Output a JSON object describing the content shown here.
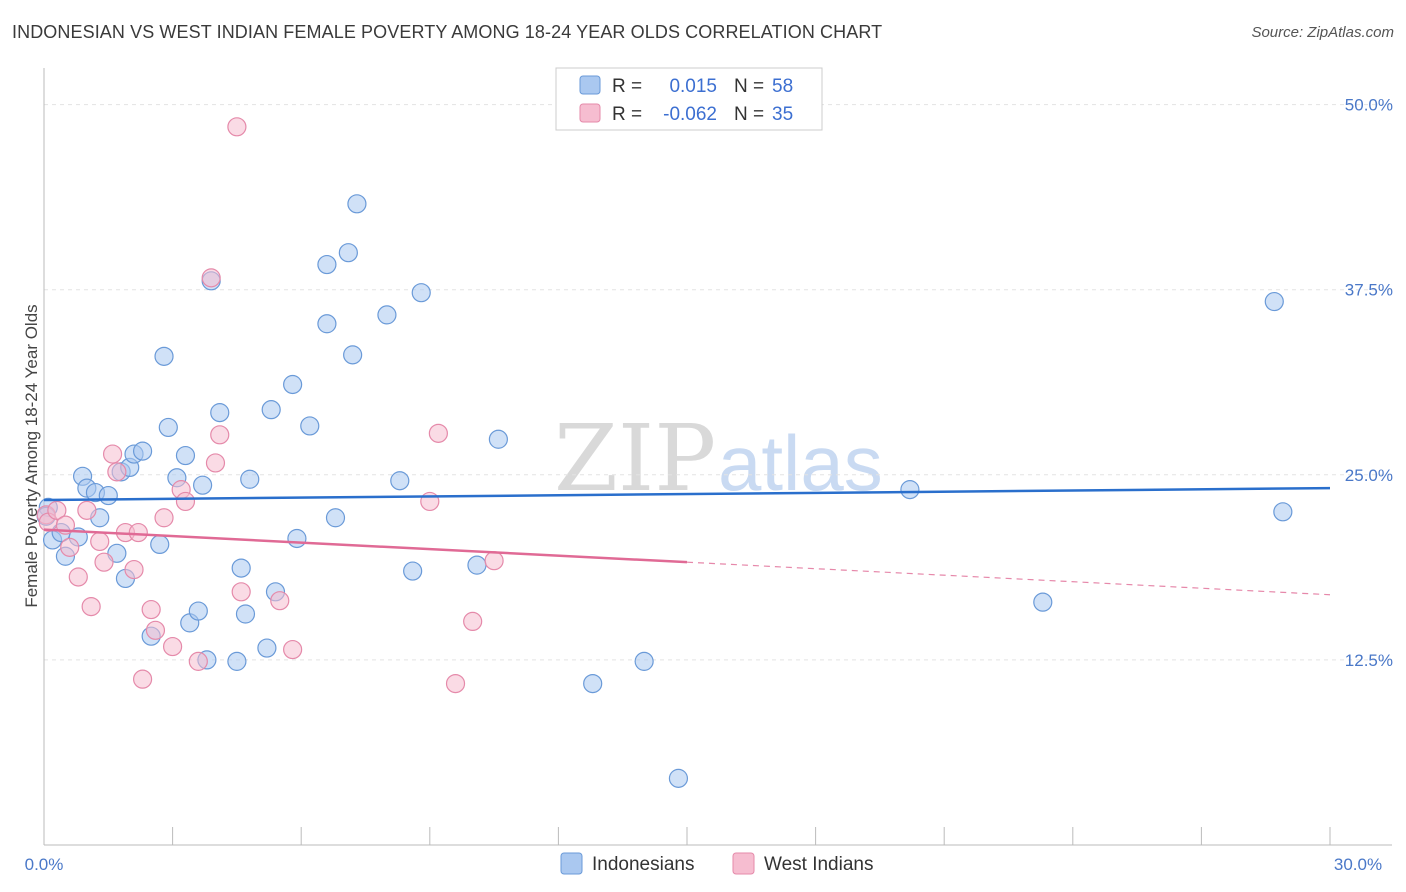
{
  "title": "INDONESIAN VS WEST INDIAN FEMALE POVERTY AMONG 18-24 YEAR OLDS CORRELATION CHART",
  "source": "Source: ZipAtlas.com",
  "watermark": {
    "zip": "ZIP",
    "atlas": "atlas"
  },
  "colors": {
    "blue_fill": "#aac8f0",
    "blue_stroke": "#6a9ad8",
    "blue_line": "#2a6fcc",
    "pink_fill": "#f6bdd0",
    "pink_stroke": "#e58aaa",
    "pink_line": "#e06a95",
    "tick": "#4a78c8",
    "grid": "#e3e3e3"
  },
  "legend": {
    "rows": [
      {
        "r_label": "R =",
        "r_value": "0.015",
        "n_label": "N =",
        "n_value": "58"
      },
      {
        "r_label": "R =",
        "r_value": "-0.062",
        "n_label": "N =",
        "n_value": "35"
      }
    ]
  },
  "chart_data": {
    "type": "scatter",
    "title": "INDONESIAN VS WEST INDIAN FEMALE POVERTY AMONG 18-24 YEAR OLDS CORRELATION CHART",
    "xlabel": "",
    "ylabel": "Female Poverty Among 18-24 Year Olds",
    "xlim": [
      0,
      30
    ],
    "ylim": [
      0,
      52
    ],
    "x_tick_labels": [
      "0.0%",
      "30.0%"
    ],
    "y_ticks": [
      12.5,
      25.0,
      37.5,
      50.0
    ],
    "y_tick_labels": [
      "12.5%",
      "25.0%",
      "37.5%",
      "50.0%"
    ],
    "grid": true,
    "legend_position": "top-center",
    "series": [
      {
        "name": "Indonesians",
        "r": 0.015,
        "n": 58,
        "trend": {
          "x": [
            0,
            30
          ],
          "y": [
            23.3,
            24.1
          ],
          "dashed_from": null
        },
        "points": [
          [
            0.1,
            22.8
          ],
          [
            0.2,
            20.6
          ],
          [
            0.4,
            21.1
          ],
          [
            0.5,
            19.5
          ],
          [
            0.8,
            20.8
          ],
          [
            0.9,
            24.9
          ],
          [
            1.0,
            24.1
          ],
          [
            1.2,
            23.8
          ],
          [
            1.3,
            22.1
          ],
          [
            1.5,
            23.6
          ],
          [
            1.7,
            19.7
          ],
          [
            1.8,
            25.2
          ],
          [
            1.9,
            18.0
          ],
          [
            2.0,
            25.5
          ],
          [
            2.1,
            26.4
          ],
          [
            2.3,
            26.6
          ],
          [
            2.5,
            14.1
          ],
          [
            2.7,
            20.3
          ],
          [
            2.8,
            33.0
          ],
          [
            2.9,
            28.2
          ],
          [
            3.1,
            24.8
          ],
          [
            3.3,
            26.3
          ],
          [
            3.4,
            15.0
          ],
          [
            3.6,
            15.8
          ],
          [
            3.7,
            24.3
          ],
          [
            3.8,
            12.5
          ],
          [
            3.9,
            38.1
          ],
          [
            4.1,
            29.2
          ],
          [
            4.5,
            12.4
          ],
          [
            4.6,
            18.7
          ],
          [
            4.7,
            15.6
          ],
          [
            4.8,
            24.7
          ],
          [
            5.2,
            13.3
          ],
          [
            5.3,
            29.4
          ],
          [
            5.4,
            17.1
          ],
          [
            5.8,
            31.1
          ],
          [
            5.9,
            20.7
          ],
          [
            6.2,
            28.3
          ],
          [
            6.6,
            39.2
          ],
          [
            6.6,
            35.2
          ],
          [
            6.8,
            22.1
          ],
          [
            7.1,
            40.0
          ],
          [
            7.2,
            33.1
          ],
          [
            7.3,
            43.3
          ],
          [
            8.0,
            35.8
          ],
          [
            8.3,
            24.6
          ],
          [
            8.6,
            18.5
          ],
          [
            8.8,
            37.3
          ],
          [
            10.1,
            18.9
          ],
          [
            10.6,
            27.4
          ],
          [
            12.8,
            10.9
          ],
          [
            14.0,
            12.4
          ],
          [
            14.8,
            4.5
          ],
          [
            20.2,
            24.0
          ],
          [
            23.3,
            16.4
          ],
          [
            28.7,
            36.7
          ],
          [
            28.9,
            22.5
          ],
          [
            0.05,
            22.2
          ]
        ]
      },
      {
        "name": "West Indians",
        "r": -0.062,
        "n": 35,
        "trend": {
          "x": [
            0,
            30
          ],
          "y": [
            21.3,
            16.9
          ],
          "dashed_from": 15.0
        },
        "points": [
          [
            0.05,
            22.3
          ],
          [
            0.1,
            21.8
          ],
          [
            0.3,
            22.6
          ],
          [
            0.5,
            21.6
          ],
          [
            0.6,
            20.1
          ],
          [
            0.8,
            18.1
          ],
          [
            1.0,
            22.6
          ],
          [
            1.1,
            16.1
          ],
          [
            1.3,
            20.5
          ],
          [
            1.4,
            19.1
          ],
          [
            1.6,
            26.4
          ],
          [
            1.7,
            25.2
          ],
          [
            1.9,
            21.1
          ],
          [
            2.1,
            18.6
          ],
          [
            2.2,
            21.1
          ],
          [
            2.3,
            11.2
          ],
          [
            2.5,
            15.9
          ],
          [
            2.6,
            14.5
          ],
          [
            2.8,
            22.1
          ],
          [
            3.0,
            13.4
          ],
          [
            3.2,
            24.0
          ],
          [
            3.3,
            23.2
          ],
          [
            3.6,
            12.4
          ],
          [
            3.9,
            38.3
          ],
          [
            4.0,
            25.8
          ],
          [
            4.1,
            27.7
          ],
          [
            4.5,
            48.5
          ],
          [
            4.6,
            17.1
          ],
          [
            5.5,
            16.5
          ],
          [
            5.8,
            13.2
          ],
          [
            9.0,
            23.2
          ],
          [
            9.2,
            27.8
          ],
          [
            9.6,
            10.9
          ],
          [
            10.0,
            15.1
          ],
          [
            10.5,
            19.2
          ]
        ]
      }
    ]
  }
}
